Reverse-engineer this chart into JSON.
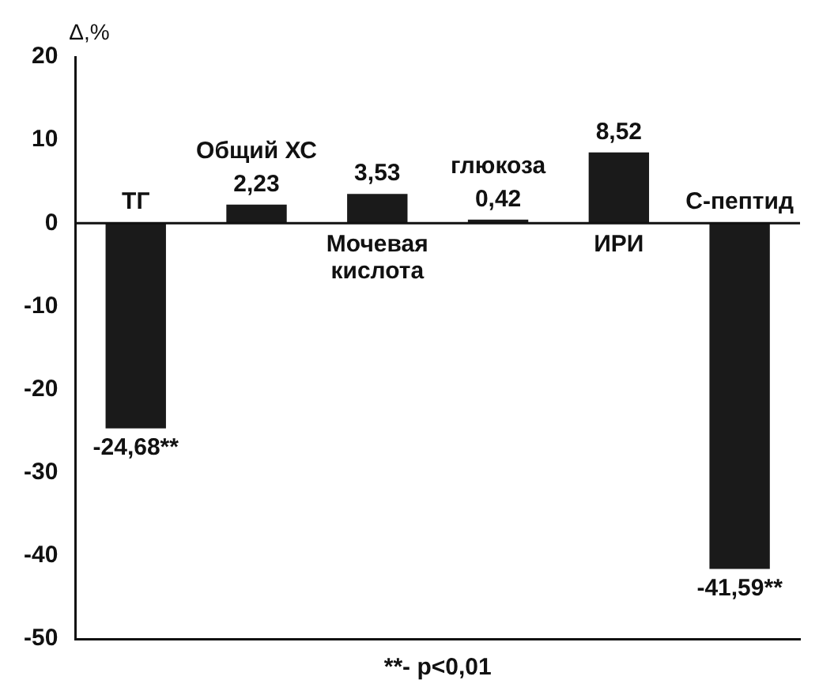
{
  "chart_data": {
    "type": "bar",
    "ylabel": "Δ,%",
    "categories": [
      "ТГ",
      "Общий ХС",
      "Мочевая кислота",
      "глюкоза",
      "ИРИ",
      "С-пептид"
    ],
    "values": [
      -24.68,
      2.23,
      3.53,
      0.42,
      8.52,
      -41.59
    ],
    "value_labels": [
      "-24,68**",
      "2,23",
      "3,53",
      "0,42",
      "8,52",
      "-41,59**"
    ],
    "color": "#1a1a1a",
    "ylim": [
      -50,
      20
    ],
    "yticks": [
      -50,
      -40,
      -30,
      -20,
      -10,
      0,
      10,
      20
    ],
    "grid": false,
    "legend": false,
    "annotations": [
      "**- p<0,01"
    ]
  }
}
